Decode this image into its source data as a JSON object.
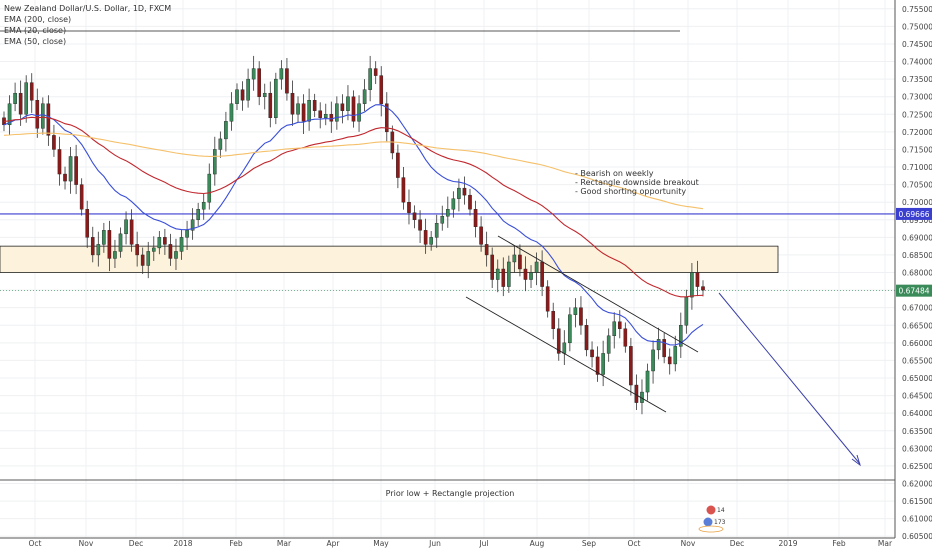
{
  "chart_data": {
    "type": "candlestick",
    "title": "New Zealand Dollar/U.S. Dollar, 1D, FXCM",
    "indicators": [
      "EMA (200, close)",
      "EMA (20, close)",
      "EMA (50, close)"
    ],
    "x_ticks": [
      "Oct",
      "Nov",
      "Dec",
      "2018",
      "Feb",
      "Mar",
      "Apr",
      "May",
      "Jun",
      "Jul",
      "Aug",
      "Sep",
      "Oct",
      "Nov",
      "Dec",
      "2019",
      "Feb",
      "Mar"
    ],
    "y_ticks": [
      "0.75500",
      "0.75000",
      "0.74500",
      "0.74000",
      "0.73500",
      "0.73000",
      "0.72500",
      "0.72000",
      "0.71500",
      "0.71000",
      "0.70500",
      "0.70000",
      "0.69500",
      "0.69000",
      "0.68500",
      "0.68000",
      "0.67500",
      "0.67000",
      "0.66500",
      "0.66000",
      "0.65500",
      "0.65000",
      "0.64500",
      "0.64000",
      "0.63500",
      "0.63000",
      "0.62500",
      "0.62000",
      "0.61500",
      "0.61000",
      "0.60500"
    ],
    "ylim": [
      0.6045,
      0.7575
    ],
    "price_path": [
      [
        0.722,
        0.728,
        0.731,
        0.725,
        0.734,
        0.729,
        0.721,
        0.728,
        0.719,
        0.715,
        0.708,
        0.706,
        0.713,
        0.705,
        0.698,
        0.69,
        0.685,
        0.688,
        0.692,
        0.684,
        0.686,
        0.691,
        0.695,
        0.688,
        0.685,
        0.682,
        0.686,
        0.687,
        0.69,
        0.688,
        0.684,
        0.686,
        0.69,
        0.692,
        0.695,
        0.698,
        0.7,
        0.708,
        0.715,
        0.718,
        0.723,
        0.728,
        0.732,
        0.729,
        0.735,
        0.738,
        0.73,
        0.731,
        0.724,
        0.735,
        0.738,
        0.731,
        0.725,
        0.728,
        0.723,
        0.729,
        0.726,
        0.724,
        0.725,
        0.723,
        0.728,
        0.726,
        0.73,
        0.723,
        0.728,
        0.732,
        0.738,
        0.736,
        0.728,
        0.72,
        0.714,
        0.707,
        0.7,
        0.697,
        0.695,
        0.692,
        0.688,
        0.69,
        0.694,
        0.696,
        0.698,
        0.701,
        0.704,
        0.702,
        0.698,
        0.693,
        0.688,
        0.685,
        0.678,
        0.681,
        0.676,
        0.683,
        0.685,
        0.681,
        0.678,
        0.68,
        0.683,
        0.676,
        0.669,
        0.664,
        0.657,
        0.66,
        0.668,
        0.67,
        0.665,
        0.658,
        0.656,
        0.651,
        0.657,
        0.662,
        0.666,
        0.664,
        0.659,
        0.648,
        0.643,
        0.646,
        0.652,
        0.658,
        0.661,
        0.656,
        0.654,
        0.659,
        0.665,
        0.673,
        0.68,
        0.676,
        0.675
      ]
    ],
    "last_price": "0.67484",
    "resistance_price": "0.69666",
    "zone": {
      "top": 0.6875,
      "bottom": 0.68
    },
    "ema200_color": "#f5c06a",
    "ema20_color": "#3a4fd8",
    "ema50_color": "#c0282e",
    "up_candle_color": "#3a8a5a",
    "down_candle_color": "#8b1a1a",
    "annotations": [
      "- Bearish on weekly",
      "- Rectangle downside breakout",
      "- Good shorting opportunity"
    ],
    "target_label": "Prior low + Rectangle projection",
    "events": [
      "14",
      "173"
    ],
    "grid": true
  }
}
